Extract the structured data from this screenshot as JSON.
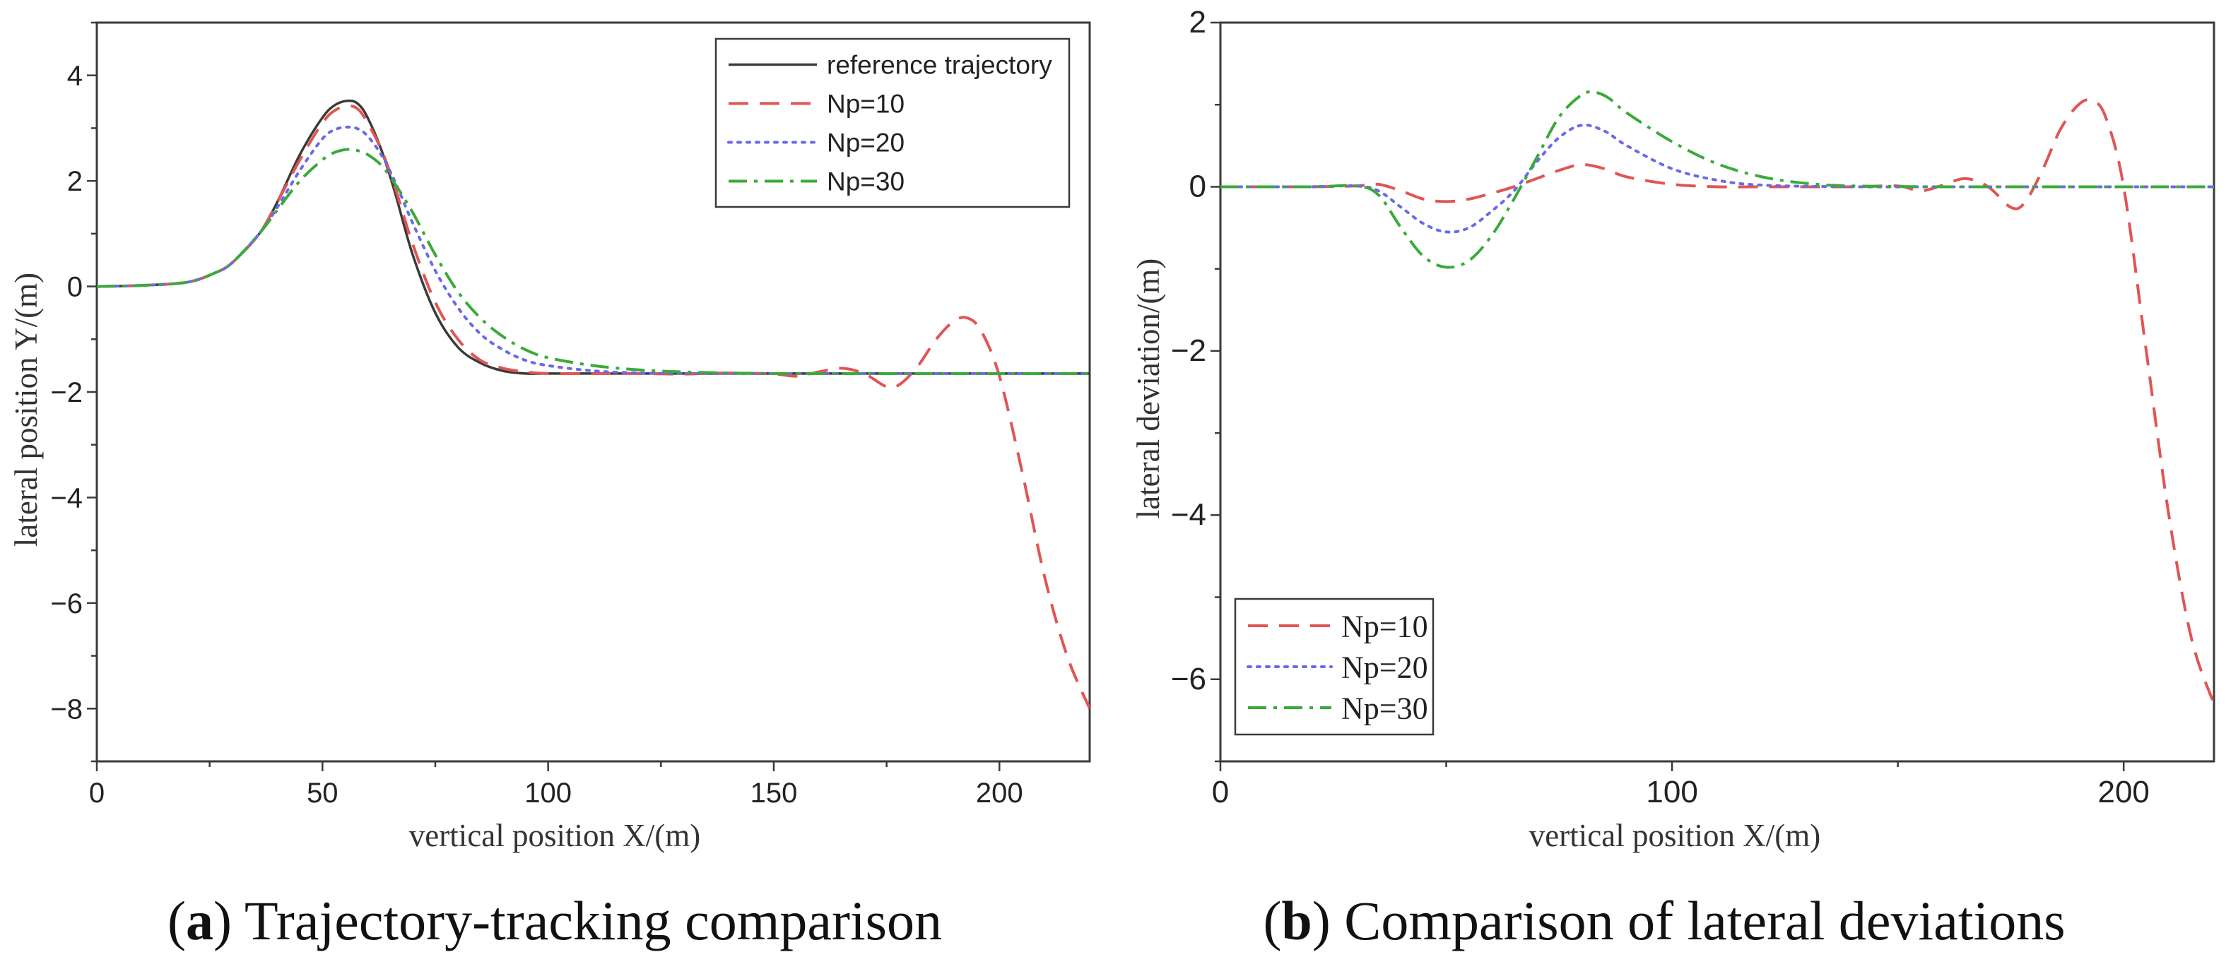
{
  "colors": {
    "axis": "#3a3a3a",
    "reference": "#3a3a3a",
    "np10": "#e05555",
    "np20": "#6a6ae8",
    "np30": "#3aaa3a"
  },
  "chart_data": [
    {
      "type": "line",
      "panel": "a",
      "caption_label": "a",
      "caption_text": " Trajectory-tracking comparison",
      "xlabel": "vertical position X/(m)",
      "ylabel": "lateral position Y/(m)",
      "xlim": [
        0,
        220
      ],
      "ylim": [
        -9,
        5
      ],
      "xticks": [
        0,
        50,
        100,
        150,
        200
      ],
      "xtick_labels": [
        "0",
        "50",
        "100",
        "150",
        "200"
      ],
      "yticks": [
        4,
        2,
        0,
        -2,
        -4,
        -6,
        -8
      ],
      "ytick_labels": [
        "4",
        "2",
        "0",
        "−2",
        "−4",
        "−6",
        "−8"
      ],
      "legend_position": "top-right",
      "series": [
        {
          "name": "reference trajectory",
          "style": "solid",
          "color_key": "reference",
          "x": [
            0,
            10,
            20,
            26,
            30,
            36,
            40,
            45,
            50,
            53,
            56,
            58,
            60,
            63,
            66,
            70,
            75,
            80,
            85,
            90,
            95,
            100,
            110,
            120,
            140,
            160,
            180,
            200,
            220
          ],
          "y": [
            0,
            0.02,
            0.08,
            0.25,
            0.45,
            1.0,
            1.6,
            2.5,
            3.2,
            3.45,
            3.52,
            3.45,
            3.2,
            2.6,
            1.8,
            0.6,
            -0.5,
            -1.15,
            -1.45,
            -1.6,
            -1.65,
            -1.65,
            -1.65,
            -1.65,
            -1.65,
            -1.65,
            -1.65,
            -1.65,
            -1.65
          ]
        },
        {
          "name": "Np=10",
          "style": "dashed",
          "color_key": "np10",
          "x": [
            0,
            10,
            20,
            26,
            30,
            36,
            40,
            45,
            50,
            53,
            56,
            58,
            60,
            63,
            66,
            70,
            75,
            80,
            85,
            90,
            95,
            100,
            110,
            120,
            130,
            140,
            150,
            155,
            160,
            165,
            170,
            175,
            178,
            182,
            186,
            190,
            193,
            196,
            200,
            205,
            210,
            215,
            220
          ],
          "y": [
            0,
            0.02,
            0.08,
            0.25,
            0.45,
            1.0,
            1.6,
            2.4,
            3.1,
            3.35,
            3.42,
            3.35,
            3.1,
            2.6,
            1.9,
            0.8,
            -0.3,
            -1.0,
            -1.4,
            -1.55,
            -1.62,
            -1.65,
            -1.65,
            -1.65,
            -1.66,
            -1.64,
            -1.66,
            -1.7,
            -1.62,
            -1.55,
            -1.65,
            -1.9,
            -1.85,
            -1.5,
            -1.0,
            -0.65,
            -0.6,
            -0.85,
            -1.7,
            -3.5,
            -5.5,
            -7.0,
            -8.0
          ]
        },
        {
          "name": "Np=20",
          "style": "dotted",
          "color_key": "np20",
          "x": [
            0,
            10,
            20,
            26,
            30,
            36,
            40,
            45,
            50,
            53,
            56,
            58,
            60,
            63,
            66,
            70,
            75,
            80,
            85,
            90,
            95,
            100,
            110,
            120,
            130,
            140,
            160,
            180,
            200,
            220
          ],
          "y": [
            0,
            0.02,
            0.08,
            0.25,
            0.45,
            1.0,
            1.5,
            2.2,
            2.8,
            2.98,
            3.02,
            2.98,
            2.85,
            2.5,
            2.0,
            1.2,
            0.3,
            -0.4,
            -0.9,
            -1.2,
            -1.4,
            -1.5,
            -1.6,
            -1.64,
            -1.65,
            -1.65,
            -1.65,
            -1.65,
            -1.65,
            -1.65
          ]
        },
        {
          "name": "Np=30",
          "style": "dashdot",
          "color_key": "np30",
          "x": [
            0,
            10,
            20,
            26,
            30,
            36,
            40,
            45,
            50,
            53,
            56,
            58,
            60,
            63,
            66,
            70,
            75,
            80,
            85,
            90,
            95,
            100,
            110,
            120,
            130,
            140,
            150,
            160,
            180,
            200,
            220
          ],
          "y": [
            0,
            0.02,
            0.08,
            0.25,
            0.45,
            1.0,
            1.45,
            2.0,
            2.4,
            2.55,
            2.6,
            2.57,
            2.5,
            2.3,
            1.95,
            1.4,
            0.6,
            -0.1,
            -0.6,
            -0.95,
            -1.2,
            -1.35,
            -1.5,
            -1.58,
            -1.62,
            -1.64,
            -1.65,
            -1.65,
            -1.65,
            -1.65,
            -1.65
          ]
        }
      ]
    },
    {
      "type": "line",
      "panel": "b",
      "caption_label": "b",
      "caption_text": " Comparison of lateral deviations",
      "xlabel": "vertical position X/(m)",
      "ylabel": "lateral deviation/(m)",
      "xlim": [
        0,
        220
      ],
      "ylim": [
        -7,
        2
      ],
      "xticks": [
        0,
        100,
        200
      ],
      "xtick_labels": [
        "0",
        "100",
        "200"
      ],
      "yticks": [
        2,
        0,
        -2,
        -4,
        -6
      ],
      "ytick_labels": [
        "2",
        "0",
        "−2",
        "−4",
        "−6"
      ],
      "legend_position": "bottom-left",
      "series": [
        {
          "name": "Np=10",
          "style": "dashed",
          "color_key": "np10",
          "x": [
            0,
            20,
            30,
            35,
            40,
            45,
            50,
            55,
            60,
            65,
            70,
            75,
            80,
            85,
            90,
            100,
            110,
            120,
            140,
            150,
            155,
            160,
            165,
            170,
            175,
            178,
            182,
            186,
            190,
            193,
            196,
            200,
            205,
            210,
            215,
            220
          ],
          "y": [
            0,
            0,
            0.01,
            0.03,
            -0.05,
            -0.15,
            -0.18,
            -0.15,
            -0.08,
            0.0,
            0.1,
            0.2,
            0.27,
            0.22,
            0.12,
            0.03,
            0.0,
            0.0,
            0.0,
            0.01,
            -0.05,
            0.02,
            0.1,
            0.0,
            -0.25,
            -0.2,
            0.2,
            0.7,
            1.0,
            1.05,
            0.85,
            0.0,
            -2.0,
            -4.0,
            -5.5,
            -6.3
          ]
        },
        {
          "name": "Np=20",
          "style": "dotted",
          "color_key": "np20",
          "x": [
            0,
            20,
            30,
            35,
            40,
            45,
            50,
            55,
            60,
            65,
            70,
            75,
            80,
            85,
            90,
            100,
            110,
            120,
            140,
            160,
            180,
            200,
            220
          ],
          "y": [
            0,
            0,
            0.01,
            -0.05,
            -0.25,
            -0.45,
            -0.55,
            -0.5,
            -0.3,
            -0.05,
            0.3,
            0.6,
            0.75,
            0.68,
            0.5,
            0.22,
            0.08,
            0.02,
            0,
            0,
            0,
            0,
            0
          ]
        },
        {
          "name": "Np=30",
          "style": "dashdot",
          "color_key": "np30",
          "x": [
            0,
            20,
            30,
            35,
            40,
            45,
            50,
            55,
            60,
            65,
            70,
            75,
            80,
            83,
            86,
            90,
            100,
            110,
            120,
            130,
            140,
            160,
            180,
            200,
            220
          ],
          "y": [
            0,
            0,
            0.01,
            -0.1,
            -0.5,
            -0.85,
            -0.98,
            -0.9,
            -0.6,
            -0.15,
            0.35,
            0.85,
            1.12,
            1.15,
            1.08,
            0.9,
            0.55,
            0.28,
            0.12,
            0.04,
            0.01,
            0,
            0,
            0,
            0
          ]
        }
      ]
    }
  ]
}
